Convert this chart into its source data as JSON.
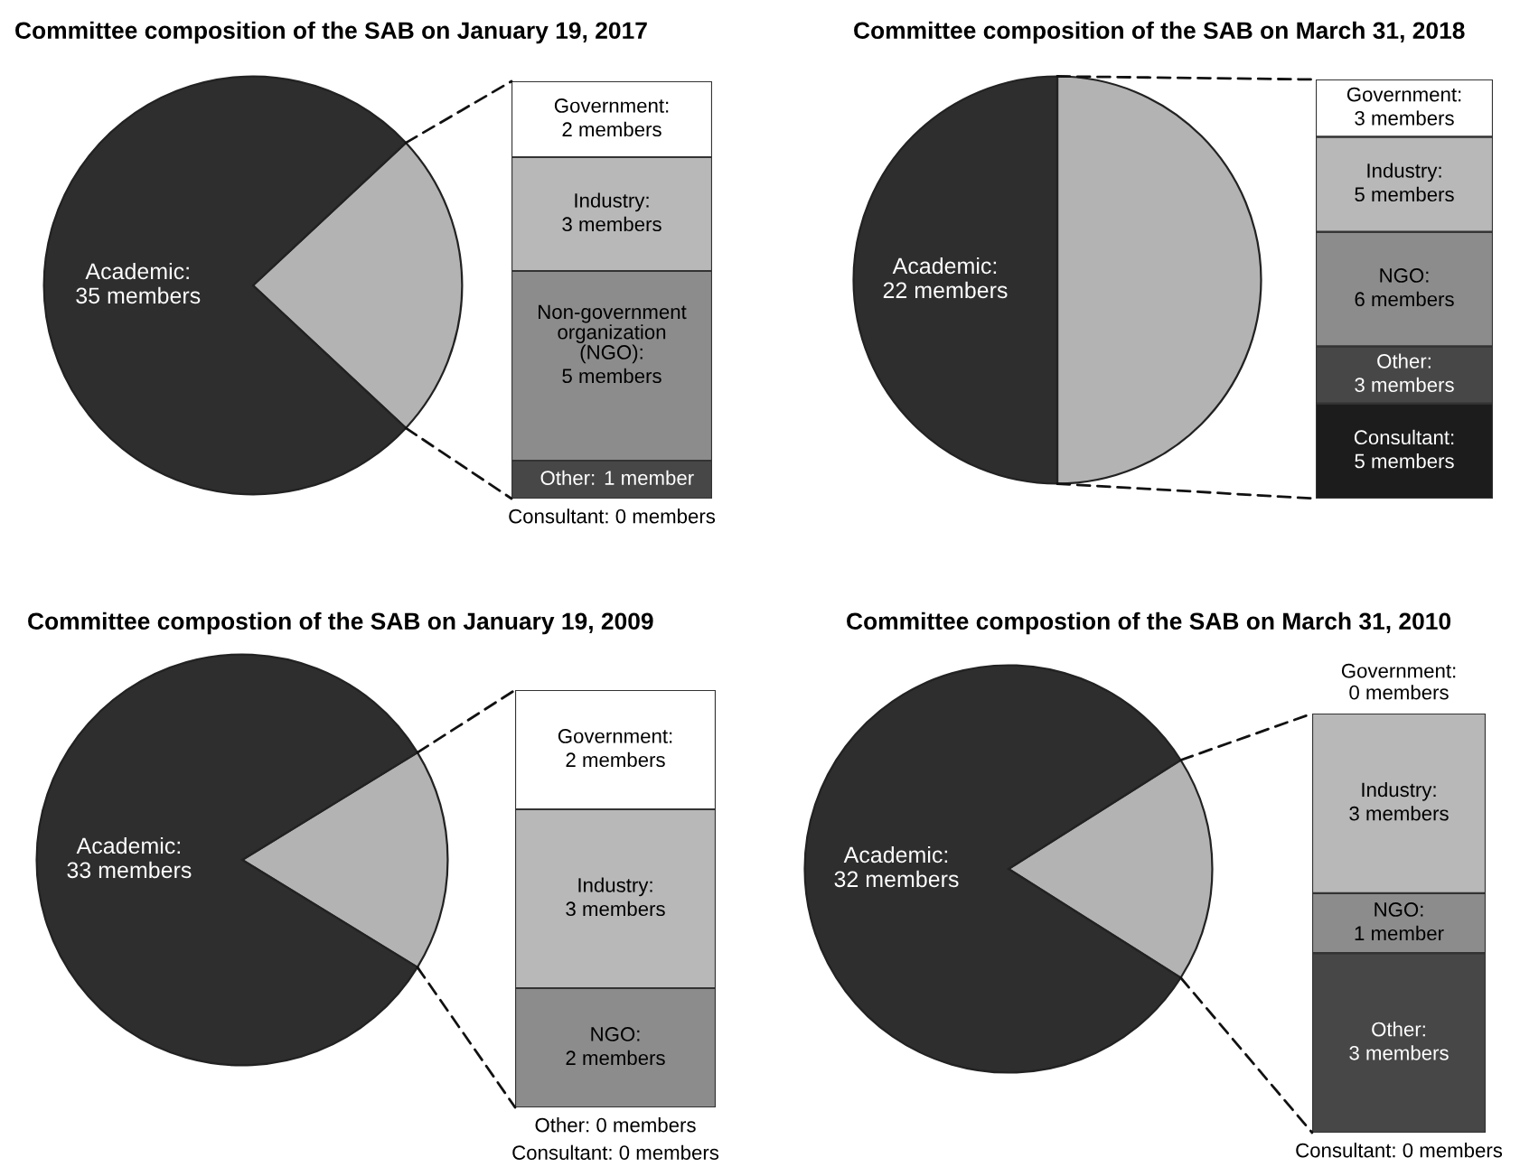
{
  "chart_data": [
    {
      "type": "pie",
      "title": "Committee composition of the SAB on January 19, 2017",
      "categories": [
        null,
        "Academic:\n35 members"
      ],
      "values": [
        11,
        35
      ],
      "colors": [
        "#b3b3b3",
        "#2e2e2e"
      ]
    },
    {
      "type": "bar",
      "stacked": true,
      "categories": [
        null
      ],
      "series": [
        {
          "name": "Other:",
          "color": "#474747",
          "values": [
            1
          ],
          "value_labels": [
            "1 member"
          ]
        },
        {
          "name": "Non-government\norganization\n(NGO):",
          "color": "#8c8c8c",
          "values": [
            5
          ],
          "value_labels": [
            "5 members"
          ]
        },
        {
          "name": "Industry:",
          "color": "#b8b8b8",
          "values": [
            3
          ],
          "value_labels": [
            "3 members"
          ]
        },
        {
          "name": "Government:",
          "color": "#ffffff",
          "values": [
            2
          ],
          "value_labels": [
            "2 members"
          ]
        }
      ],
      "annotations": [
        {
          "text": "Consultant: 0 members",
          "y": 0
        }
      ]
    },
    {
      "type": "pie",
      "title": "Committee composition of the SAB on March 31, 2018",
      "categories": [
        null,
        "Academic:\n22 members"
      ],
      "values": [
        22,
        22
      ],
      "colors": [
        "#b3b3b3",
        "#2e2e2e"
      ]
    },
    {
      "type": "bar",
      "stacked": true,
      "categories": [
        null
      ],
      "series": [
        {
          "name": "Consultant:",
          "color": "#1c1c1c",
          "values": [
            5
          ],
          "value_labels": [
            "5 members"
          ]
        },
        {
          "name": "Other:",
          "color": "#474747",
          "values": [
            3
          ],
          "value_labels": [
            "3 members"
          ]
        },
        {
          "name": "NGO:",
          "color": "#8c8c8c",
          "values": [
            6
          ],
          "value_labels": [
            "6 members"
          ]
        },
        {
          "name": "Industry:",
          "color": "#b8b8b8",
          "values": [
            5
          ],
          "value_labels": [
            "5 members"
          ]
        },
        {
          "name": "Government:",
          "color": "#ffffff",
          "values": [
            3
          ],
          "value_labels": [
            "3 members"
          ]
        }
      ]
    },
    {
      "type": "pie",
      "title": "Committee compostion of the SAB on January 19, 2009",
      "categories": [
        null,
        "Academic:\n33 members"
      ],
      "values": [
        7,
        33
      ],
      "colors": [
        "#b3b3b3",
        "#2e2e2e"
      ]
    },
    {
      "type": "bar",
      "stacked": true,
      "categories": [
        null
      ],
      "series": [
        {
          "name": "NGO:",
          "color": "#8c8c8c",
          "values": [
            2
          ],
          "value_labels": [
            "2 members"
          ]
        },
        {
          "name": "Industry:",
          "color": "#b8b8b8",
          "values": [
            3
          ],
          "value_labels": [
            "3 members"
          ]
        },
        {
          "name": "Government:",
          "color": "#ffffff",
          "values": [
            2
          ],
          "value_labels": [
            "2 members"
          ]
        }
      ],
      "annotations": [
        {
          "text": "Other: 0 members",
          "y": 0
        },
        {
          "text": "Consultant: 0 members",
          "y": 0
        }
      ]
    },
    {
      "type": "pie",
      "title": "Committee compostion of the SAB on March 31, 2010",
      "categories": [
        null,
        "Academic:\n32 members"
      ],
      "values": [
        7,
        32
      ],
      "colors": [
        "#b3b3b3",
        "#2e2e2e"
      ]
    },
    {
      "type": "bar",
      "stacked": true,
      "categories": [
        null
      ],
      "series": [
        {
          "name": "Other:",
          "color": "#474747",
          "values": [
            3
          ],
          "value_labels": [
            "3 members"
          ]
        },
        {
          "name": "NGO:",
          "color": "#8c8c8c",
          "values": [
            1
          ],
          "value_labels": [
            "1 member"
          ]
        },
        {
          "name": "Industry:",
          "color": "#b8b8b8",
          "values": [
            3
          ],
          "value_labels": [
            "3 members"
          ]
        }
      ],
      "annotations": [
        {
          "text": "Government:\n0 members",
          "y": 7
        },
        {
          "text": "Consultant: 0 members",
          "y": 0
        }
      ]
    }
  ]
}
